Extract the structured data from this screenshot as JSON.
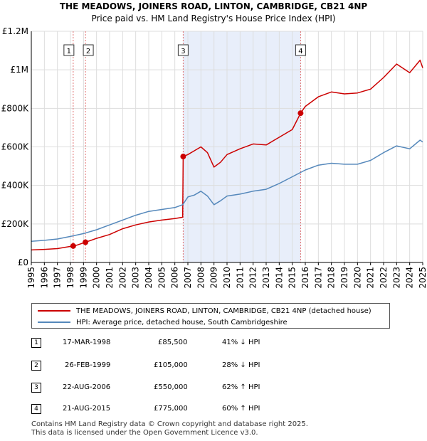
{
  "title": "THE MEADOWS, JOINERS ROAD, LINTON, CAMBRIDGE, CB21 4NP",
  "subtitle": "Price paid vs. HM Land Registry's House Price Index (HPI)",
  "colors": {
    "property": "#cc0000",
    "hpi": "#5588bb",
    "shade": "#e8eefa",
    "vline": "#e07070",
    "grid": "#dddddd"
  },
  "chart_data": {
    "type": "line",
    "xlim": [
      1995,
      2025
    ],
    "ylim": [
      0,
      1200000
    ],
    "x_ticks": [
      "1995",
      "1996",
      "1997",
      "1998",
      "1999",
      "2000",
      "2001",
      "2002",
      "2003",
      "2004",
      "2005",
      "2006",
      "2007",
      "2008",
      "2009",
      "2010",
      "2011",
      "2012",
      "2013",
      "2014",
      "2015",
      "2016",
      "2017",
      "2018",
      "2019",
      "2020",
      "2021",
      "2022",
      "2023",
      "2024",
      "2025"
    ],
    "y_ticks": [
      {
        "value": 0,
        "label": "£0"
      },
      {
        "value": 200000,
        "label": "£200K"
      },
      {
        "value": 400000,
        "label": "£400K"
      },
      {
        "value": 600000,
        "label": "£600K"
      },
      {
        "value": 800000,
        "label": "£800K"
      },
      {
        "value": 1000000,
        "label": "£1M"
      },
      {
        "value": 1200000,
        "label": "£1.2M"
      }
    ],
    "shaded_ranges": [
      [
        2006.64,
        2015.64
      ]
    ],
    "series": [
      {
        "name": "THE MEADOWS, JOINERS ROAD, LINTON, CAMBRIDGE, CB21 4NP (detached house)",
        "x": [
          1995,
          1996,
          1997,
          1998.21,
          1998.5,
          1999.15,
          2000,
          2001,
          2002,
          2003,
          2004,
          2005,
          2006,
          2006.6,
          2006.64,
          2007,
          2007.5,
          2008,
          2008.5,
          2009,
          2009.5,
          2010,
          2011,
          2012,
          2013,
          2014,
          2015,
          2015.64,
          2016,
          2017,
          2018,
          2019,
          2020,
          2021,
          2022,
          2023,
          2024,
          2024.8,
          2025
        ],
        "y": [
          65000,
          68000,
          72000,
          85500,
          90000,
          105000,
          125000,
          145000,
          175000,
          195000,
          210000,
          220000,
          228000,
          235000,
          550000,
          560000,
          580000,
          600000,
          570000,
          495000,
          520000,
          560000,
          590000,
          615000,
          610000,
          650000,
          690000,
          775000,
          810000,
          860000,
          885000,
          875000,
          880000,
          900000,
          960000,
          1030000,
          985000,
          1050000,
          1010000
        ]
      },
      {
        "name": "HPI: Average price, detached house, South Cambridgeshire",
        "x": [
          1995,
          1996,
          1997,
          1998,
          1999,
          2000,
          2001,
          2002,
          2003,
          2004,
          2005,
          2006,
          2006.6,
          2007,
          2007.5,
          2008,
          2008.5,
          2009,
          2009.5,
          2010,
          2011,
          2012,
          2013,
          2014,
          2015,
          2016,
          2017,
          2018,
          2019,
          2020,
          2021,
          2022,
          2023,
          2024,
          2024.8,
          2025
        ],
        "y": [
          110000,
          115000,
          122000,
          135000,
          150000,
          170000,
          195000,
          220000,
          245000,
          265000,
          275000,
          285000,
          300000,
          340000,
          350000,
          370000,
          345000,
          300000,
          320000,
          345000,
          355000,
          370000,
          380000,
          410000,
          445000,
          480000,
          505000,
          515000,
          510000,
          510000,
          530000,
          570000,
          605000,
          590000,
          635000,
          625000
        ]
      }
    ],
    "sales": [
      {
        "n": "1",
        "x": 1998.21,
        "y": 85500
      },
      {
        "n": "2",
        "x": 1999.15,
        "y": 105000
      },
      {
        "n": "3",
        "x": 2006.64,
        "y": 550000
      },
      {
        "n": "4",
        "x": 2015.64,
        "y": 775000
      }
    ]
  },
  "legend": {
    "property": "THE MEADOWS, JOINERS ROAD, LINTON, CAMBRIDGE, CB21 4NP (detached house)",
    "hpi": "HPI: Average price, detached house, South Cambridgeshire"
  },
  "transactions": [
    {
      "n": "1",
      "date": "17-MAR-1998",
      "price": "£85,500",
      "hpi": "41% ↓ HPI"
    },
    {
      "n": "2",
      "date": "26-FEB-1999",
      "price": "£105,000",
      "hpi": "28% ↓ HPI"
    },
    {
      "n": "3",
      "date": "22-AUG-2006",
      "price": "£550,000",
      "hpi": "62% ↑ HPI"
    },
    {
      "n": "4",
      "date": "21-AUG-2015",
      "price": "£775,000",
      "hpi": "60% ↑ HPI"
    }
  ],
  "footer": {
    "line1": "Contains HM Land Registry data © Crown copyright and database right 2025.",
    "line2": "This data is licensed under the Open Government Licence v3.0."
  }
}
